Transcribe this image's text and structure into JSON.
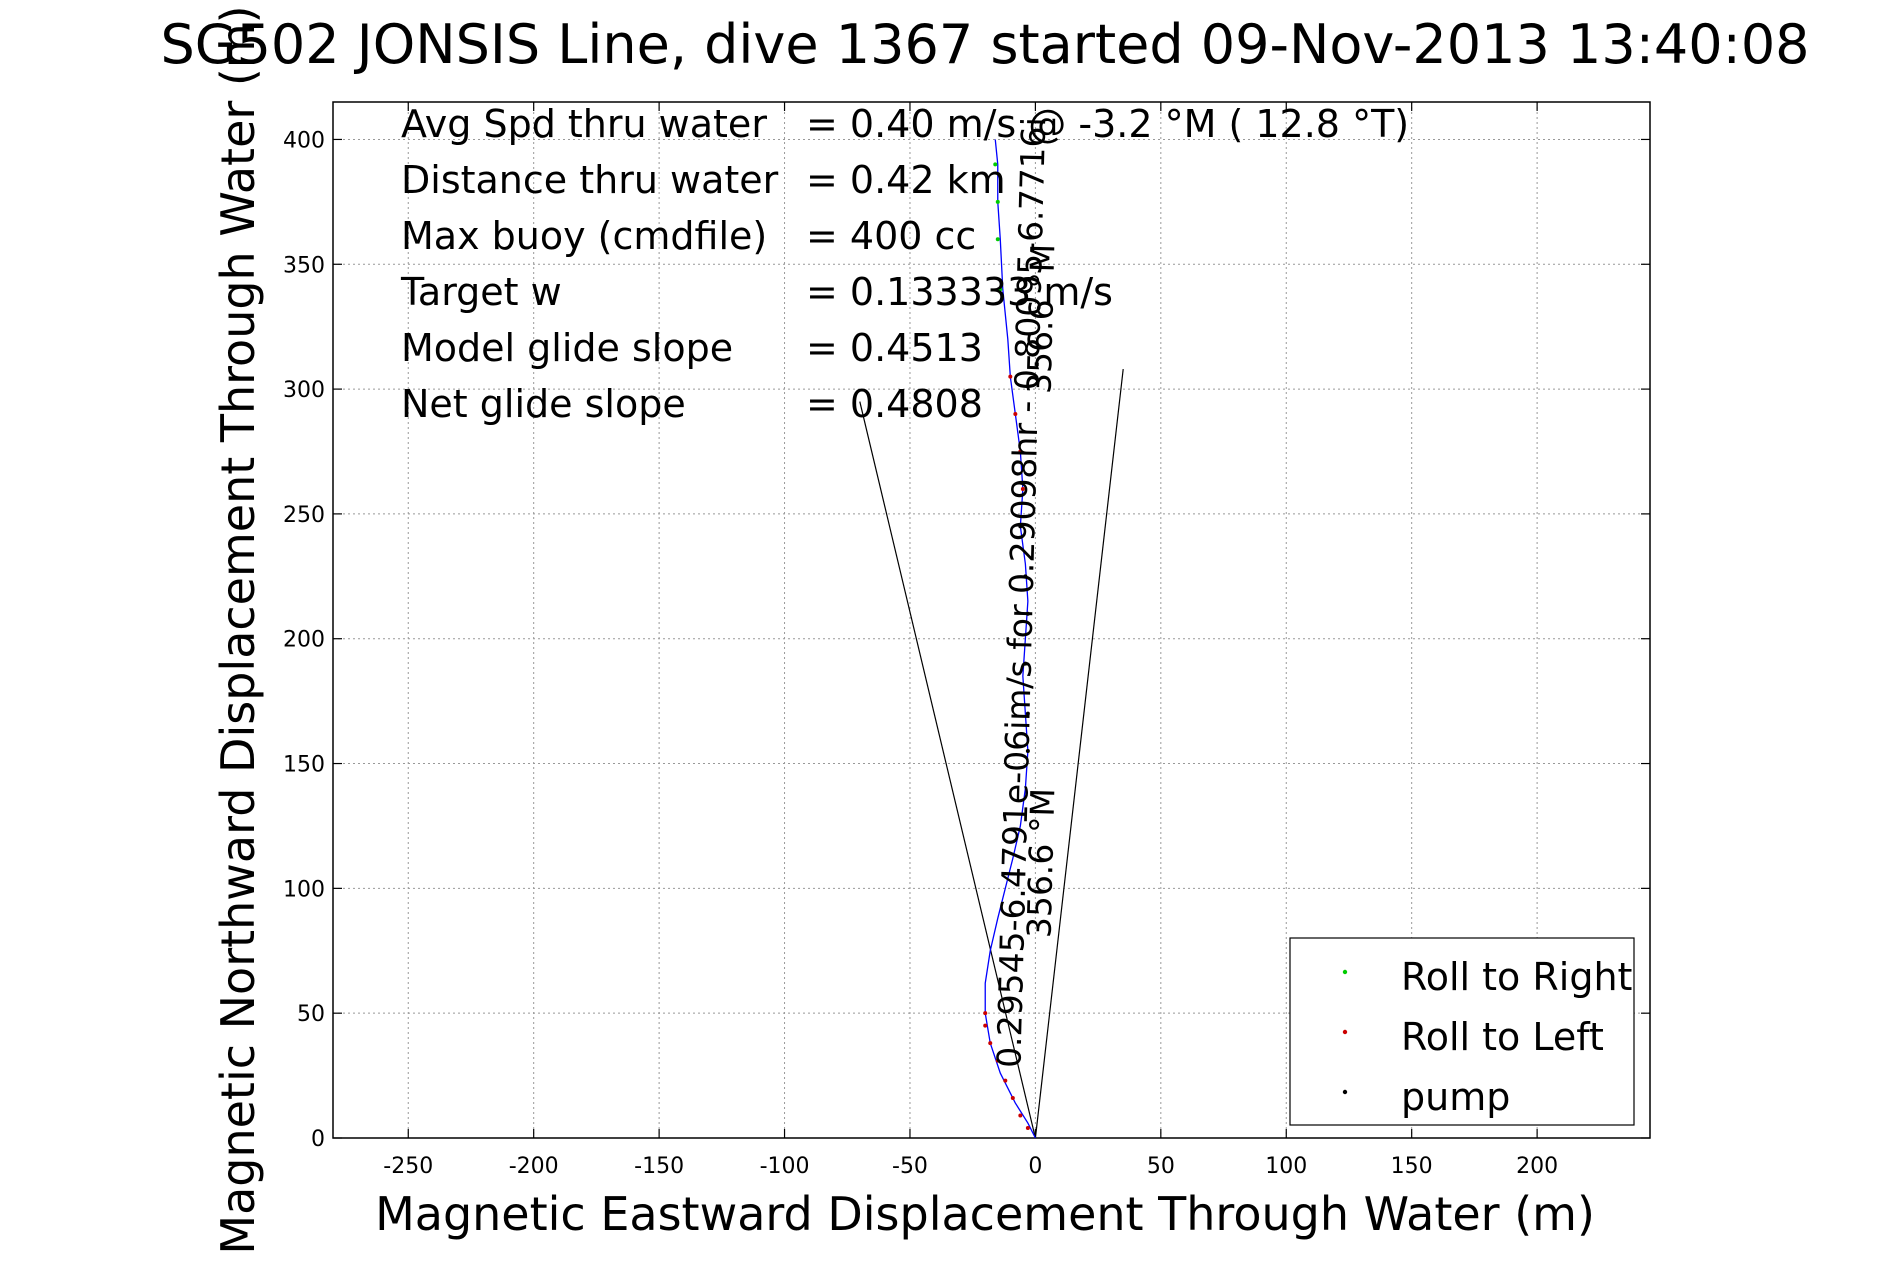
{
  "chart_data": {
    "type": "line",
    "title": "SG502 JONSIS Line, dive 1367 started 09-Nov-2013 13:40:08",
    "xlabel": "Magnetic Eastward Displacement Through Water (m)",
    "ylabel": "Magnetic Northward Displacement Through Water (m)",
    "xlim": [
      -280,
      245
    ],
    "ylim": [
      0,
      415
    ],
    "x_ticks": [
      -250,
      -200,
      -150,
      -100,
      -50,
      0,
      50,
      100,
      150,
      200
    ],
    "y_ticks": [
      0,
      50,
      100,
      150,
      200,
      250,
      300,
      350,
      400
    ],
    "grid": true,
    "info_lines": [
      {
        "label": "Avg Spd thru water",
        "value": "=  0.40 m/s @  -3.2 °M ( 12.8 °T)"
      },
      {
        "label": "Distance thru water",
        "value": "=  0.42 km"
      },
      {
        "label": "Max buoy (cmdfile)",
        "value": "= 400 cc"
      },
      {
        "label": "Target w",
        "value": "= 0.133333 m/s"
      },
      {
        "label": "Model glide slope",
        "value": "= 0.4513"
      },
      {
        "label": "Net glide slope",
        "value": "= 0.4808"
      }
    ],
    "rotated_labels": [
      {
        "text": "0.29545-6.4791e-06im/s for 0.29098hr - 0.80095-6.7716i",
        "x": -6,
        "y": 28,
        "angle": -88.5
      },
      {
        "text": "356.6 °M",
        "x": 6,
        "y": 80,
        "angle": -88.5
      },
      {
        "text": "356.6 °M",
        "x": 6,
        "y": 298,
        "angle": -88.5
      }
    ],
    "cone_lines": [
      {
        "name": "cone-left",
        "x": [
          0,
          -70
        ],
        "y": [
          0,
          295
        ]
      },
      {
        "name": "cone-right",
        "x": [
          0,
          35
        ],
        "y": [
          0,
          308
        ]
      }
    ],
    "series": [
      {
        "name": "track",
        "color": "#0000ff",
        "x": [
          0,
          -3,
          -8,
          -14,
          -18,
          -20,
          -20,
          -18,
          -15,
          -12,
          -9,
          -6,
          -4,
          -3,
          -4,
          -5,
          -4,
          -3,
          -4,
          -6,
          -5,
          -6,
          -8,
          -10,
          -11,
          -13,
          -14,
          -15,
          -15,
          -16
        ],
        "y": [
          0,
          6,
          14,
          26,
          38,
          50,
          62,
          75,
          88,
          100,
          112,
          125,
          140,
          155,
          170,
          185,
          200,
          215,
          230,
          245,
          260,
          275,
          290,
          305,
          320,
          340,
          360,
          375,
          390,
          400
        ]
      },
      {
        "name": "Roll to Right",
        "color": "#00cc00",
        "x": [
          -14,
          -15,
          -15,
          -16
        ],
        "y": [
          340,
          360,
          375,
          390
        ]
      },
      {
        "name": "Roll to Left",
        "color": "#cc0000",
        "x": [
          -3,
          -6,
          -9,
          -12,
          -15,
          -18,
          -20,
          -20,
          -5,
          -6,
          -8,
          -10
        ],
        "y": [
          4,
          9,
          16,
          23,
          31,
          38,
          45,
          50,
          260,
          275,
          290,
          305
        ]
      },
      {
        "name": "pump",
        "color": "#000000",
        "x": [
          -3,
          -3,
          -4,
          -3,
          -4,
          -6
        ],
        "y": [
          155,
          170,
          190,
          210,
          225,
          245
        ]
      }
    ],
    "legend": {
      "placement": "bottom-right",
      "entries": [
        {
          "label": "Roll to Right",
          "color": "#00cc00"
        },
        {
          "label": "Roll to Left",
          "color": "#cc0000"
        },
        {
          "label": "pump",
          "color": "#000000"
        }
      ]
    }
  }
}
